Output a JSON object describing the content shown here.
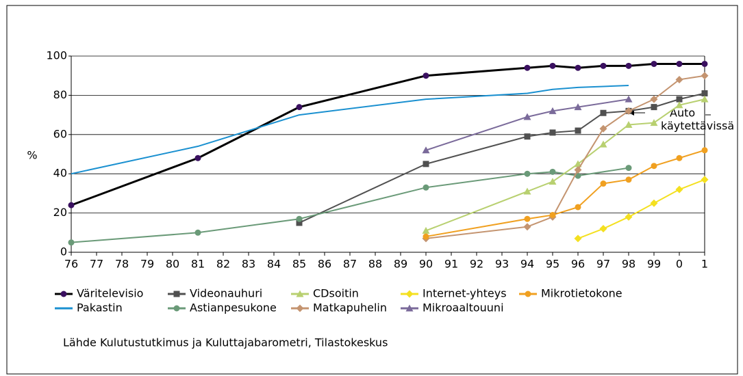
{
  "chart_data": {
    "type": "line",
    "y_label": "%",
    "categories": [
      "76",
      "77",
      "78",
      "79",
      "80",
      "81",
      "82",
      "83",
      "84",
      "85",
      "86",
      "87",
      "88",
      "89",
      "90",
      "91",
      "92",
      "93",
      "94",
      "95",
      "96",
      "97",
      "98",
      "99",
      "0",
      "1"
    ],
    "ylim": [
      0,
      100
    ],
    "yticks": [
      0,
      20,
      40,
      60,
      80,
      100
    ],
    "grid": true,
    "series": [
      {
        "name": "Väritelevisio",
        "color": "#000000",
        "marker_color": "#3a1060",
        "marker": "circle",
        "width": 3,
        "x": [
          "76",
          "81",
          "85",
          "90",
          "94",
          "95",
          "96",
          "97",
          "98",
          "99",
          "0",
          "1"
        ],
        "values": [
          24,
          48,
          74,
          90,
          94,
          95,
          94,
          95,
          95,
          96,
          96,
          96
        ]
      },
      {
        "name": "Pakastin",
        "color": "#1a90d0",
        "marker": "none",
        "width": 2,
        "x": [
          "76",
          "81",
          "85",
          "90",
          "94",
          "95",
          "96",
          "97",
          "98"
        ],
        "values": [
          40,
          54,
          70,
          78,
          81,
          83,
          84,
          84.5,
          85
        ]
      },
      {
        "name": "Videonauhuri",
        "color": "#505050",
        "marker": "square",
        "width": 2,
        "x": [
          "85",
          "90",
          "94",
          "95",
          "96",
          "97",
          "98",
          "99",
          "0",
          "1"
        ],
        "values": [
          15,
          45,
          59,
          61,
          62,
          71,
          72,
          74,
          78,
          81
        ]
      },
      {
        "name": "Astianpesukone",
        "color": "#6a9a78",
        "marker": "circle",
        "width": 2,
        "x": [
          "76",
          "81",
          "85",
          "90",
          "94",
          "95",
          "96",
          "98"
        ],
        "values": [
          5,
          10,
          17,
          33,
          40,
          41,
          39,
          43
        ]
      },
      {
        "name": "CDsoitin",
        "color": "#b8d070",
        "marker": "triangle",
        "width": 2,
        "x": [
          "90",
          "94",
          "95",
          "96",
          "97",
          "98",
          "99",
          "0",
          "1"
        ],
        "values": [
          11,
          31,
          36,
          45,
          55,
          65,
          66,
          75,
          78
        ]
      },
      {
        "name": "Matkapuhelin",
        "color": "#c49470",
        "marker": "diamond",
        "width": 2,
        "x": [
          "90",
          "94",
          "95",
          "96",
          "97",
          "98",
          "99",
          "0",
          "1"
        ],
        "values": [
          7,
          13,
          18,
          42,
          63,
          72,
          78,
          88,
          90
        ]
      },
      {
        "name": "Internet-yhteys",
        "color": "#f4e020",
        "marker": "diamond",
        "width": 2,
        "x": [
          "96",
          "97",
          "98",
          "99",
          "0",
          "1"
        ],
        "values": [
          7,
          12,
          18,
          25,
          32,
          37
        ]
      },
      {
        "name": "Mikroaaltouuni",
        "color": "#7a6a9a",
        "marker": "triangle",
        "width": 2,
        "x": [
          "90",
          "94",
          "95",
          "96",
          "98"
        ],
        "values": [
          52,
          69,
          72,
          74,
          78
        ]
      },
      {
        "name": "Mikrotietokone",
        "color": "#f0a020",
        "marker": "circle",
        "width": 2,
        "x": [
          "90",
          "94",
          "95",
          "96",
          "97",
          "98",
          "99",
          "0",
          "1"
        ],
        "values": [
          8,
          17,
          19,
          23,
          35,
          37,
          44,
          48,
          52
        ]
      }
    ],
    "annotation": [
      "Auto",
      "käytettävissä"
    ],
    "source": "Lähde Kulutustutkimus ja Kuluttajabarometri, Tilastokeskus"
  }
}
